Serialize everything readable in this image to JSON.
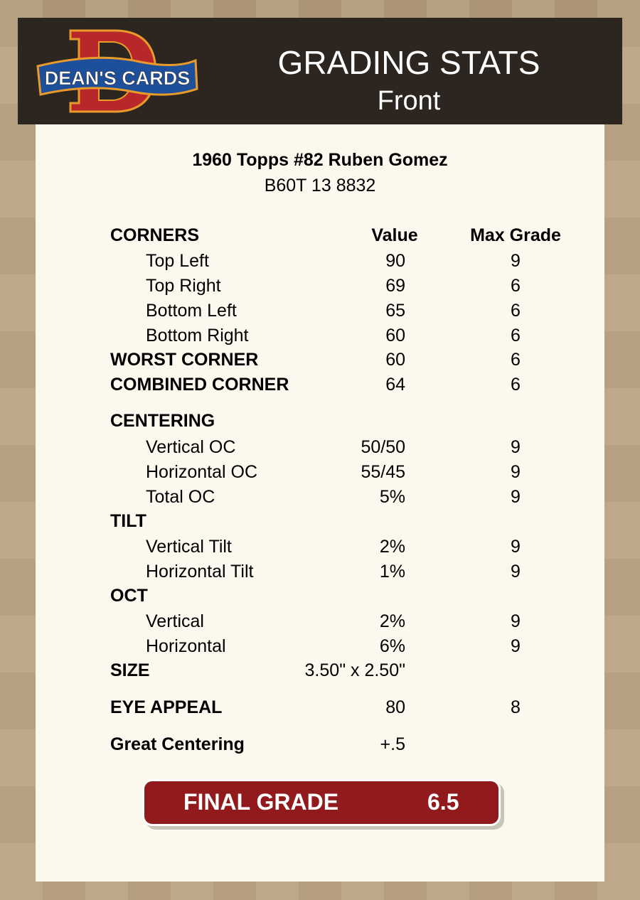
{
  "header": {
    "logo_text": "DEAN'S CARDS",
    "title": "GRADING STATS",
    "subtitle": "Front"
  },
  "card": {
    "name": "1960 Topps #82 Ruben Gomez",
    "code": "B60T 13 8832"
  },
  "columns": {
    "value": "Value",
    "max": "Max Grade"
  },
  "rows": [
    {
      "label": "CORNERS",
      "value": "",
      "max": "",
      "bold": true,
      "indent": false
    },
    {
      "label": "Top Left",
      "value": "90",
      "max": "9",
      "bold": false,
      "indent": true
    },
    {
      "label": "Top Right",
      "value": "69",
      "max": "6",
      "bold": false,
      "indent": true
    },
    {
      "label": "Bottom Left",
      "value": "65",
      "max": "6",
      "bold": false,
      "indent": true
    },
    {
      "label": "Bottom Right",
      "value": "60",
      "max": "6",
      "bold": false,
      "indent": true
    },
    {
      "label": "WORST CORNER",
      "value": "60",
      "max": "6",
      "bold": true,
      "indent": false
    },
    {
      "label": "COMBINED CORNER",
      "value": "64",
      "max": "6",
      "bold": true,
      "indent": false
    },
    {
      "label": "CENTERING",
      "value": "",
      "max": "",
      "bold": true,
      "indent": false
    },
    {
      "label": "Vertical OC",
      "value": "50/50",
      "max": "9",
      "bold": false,
      "indent": true
    },
    {
      "label": "Horizontal OC",
      "value": "55/45",
      "max": "9",
      "bold": false,
      "indent": true
    },
    {
      "label": "Total OC",
      "value": "5%",
      "max": "9",
      "bold": false,
      "indent": true
    },
    {
      "label": "TILT",
      "value": "",
      "max": "",
      "bold": true,
      "indent": false
    },
    {
      "label": "Vertical Tilt",
      "value": "2%",
      "max": "9",
      "bold": false,
      "indent": true
    },
    {
      "label": "Horizontal Tilt",
      "value": "1%",
      "max": "9",
      "bold": false,
      "indent": true
    },
    {
      "label": "OCT",
      "value": "",
      "max": "",
      "bold": true,
      "indent": false
    },
    {
      "label": "Vertical",
      "value": "2%",
      "max": "9",
      "bold": false,
      "indent": true
    },
    {
      "label": "Horizontal",
      "value": "6%",
      "max": "9",
      "bold": false,
      "indent": true
    },
    {
      "label": "SIZE",
      "value": "3.50\" x 2.50\"",
      "max": "",
      "bold": true,
      "indent": false
    },
    {
      "label": "EYE APPEAL",
      "value": "80",
      "max": "8",
      "bold": true,
      "indent": false
    },
    {
      "label": "Great Centering",
      "value": "+.5",
      "max": "",
      "bold": true,
      "indent": false
    }
  ],
  "final": {
    "label": "FINAL GRADE",
    "value": "6.5"
  },
  "colors": {
    "header_bg": "#2d2620",
    "card_bg": "#fcf8ee",
    "final_bg": "#911a1c"
  }
}
